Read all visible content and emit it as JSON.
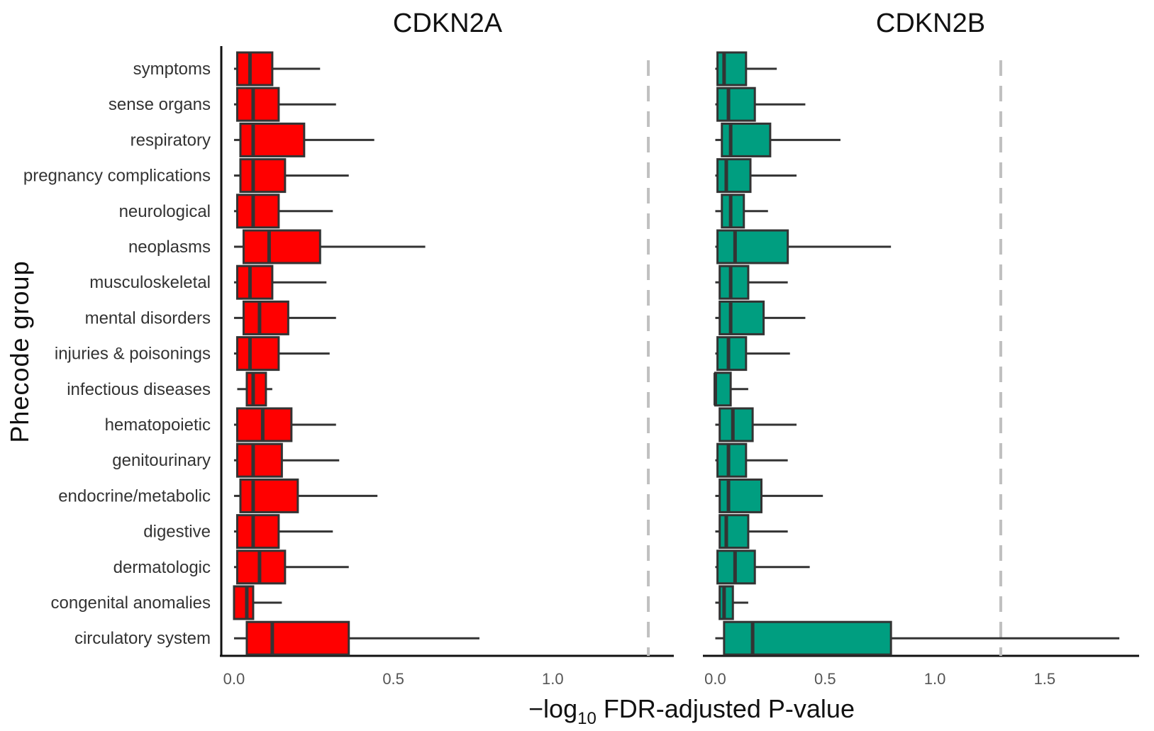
{
  "figure": {
    "y_axis_title": "Phecode group",
    "x_axis_title_prefix": "−log",
    "x_axis_title_subscript": "10",
    "x_axis_title_suffix": " FDR-adjusted P-value"
  },
  "chart_data": [
    {
      "type": "boxplot",
      "title": "CDKN2A",
      "xlabel": "−log10 FDR-adjusted P-value",
      "ylabel": "Phecode group",
      "xlim": [
        -0.04,
        1.38
      ],
      "xticks": [
        0.0,
        0.5,
        1.0
      ],
      "xtick_labels": [
        "0.0",
        "0.5",
        "1.0"
      ],
      "reference_line": 1.3,
      "grid": false,
      "color": "#ff0000",
      "categories": [
        "symptoms",
        "sense organs",
        "respiratory",
        "pregnancy complications",
        "neurological",
        "neoplasms",
        "musculoskeletal",
        "mental disorders",
        "injuries & poisonings",
        "infectious diseases",
        "hematopoietic",
        "genitourinary",
        "endocrine/metabolic",
        "digestive",
        "dermatologic",
        "congenital anomalies",
        "circulatory system"
      ],
      "boxes": [
        {
          "category": "symptoms",
          "min": 0.0,
          "q1": 0.01,
          "median": 0.05,
          "q3": 0.12,
          "max": 0.27
        },
        {
          "category": "sense organs",
          "min": 0.0,
          "q1": 0.01,
          "median": 0.06,
          "q3": 0.14,
          "max": 0.32
        },
        {
          "category": "respiratory",
          "min": 0.0,
          "q1": 0.02,
          "median": 0.06,
          "q3": 0.22,
          "max": 0.44
        },
        {
          "category": "pregnancy complications",
          "min": 0.0,
          "q1": 0.02,
          "median": 0.06,
          "q3": 0.16,
          "max": 0.36
        },
        {
          "category": "neurological",
          "min": 0.0,
          "q1": 0.01,
          "median": 0.06,
          "q3": 0.14,
          "max": 0.31
        },
        {
          "category": "neoplasms",
          "min": 0.0,
          "q1": 0.03,
          "median": 0.11,
          "q3": 0.27,
          "max": 0.6
        },
        {
          "category": "musculoskeletal",
          "min": 0.0,
          "q1": 0.01,
          "median": 0.05,
          "q3": 0.12,
          "max": 0.29
        },
        {
          "category": "mental disorders",
          "min": 0.0,
          "q1": 0.03,
          "median": 0.08,
          "q3": 0.17,
          "max": 0.32
        },
        {
          "category": "injuries & poisonings",
          "min": 0.0,
          "q1": 0.01,
          "median": 0.05,
          "q3": 0.14,
          "max": 0.3
        },
        {
          "category": "infectious diseases",
          "min": 0.01,
          "q1": 0.04,
          "median": 0.06,
          "q3": 0.1,
          "max": 0.12
        },
        {
          "category": "hematopoietic",
          "min": 0.0,
          "q1": 0.01,
          "median": 0.09,
          "q3": 0.18,
          "max": 0.32
        },
        {
          "category": "genitourinary",
          "min": 0.0,
          "q1": 0.01,
          "median": 0.06,
          "q3": 0.15,
          "max": 0.33
        },
        {
          "category": "endocrine/metabolic",
          "min": 0.0,
          "q1": 0.02,
          "median": 0.06,
          "q3": 0.2,
          "max": 0.45
        },
        {
          "category": "digestive",
          "min": 0.0,
          "q1": 0.01,
          "median": 0.06,
          "q3": 0.14,
          "max": 0.31
        },
        {
          "category": "dermatologic",
          "min": 0.0,
          "q1": 0.01,
          "median": 0.08,
          "q3": 0.16,
          "max": 0.36
        },
        {
          "category": "congenital anomalies",
          "min": 0.0,
          "q1": 0.0,
          "median": 0.04,
          "q3": 0.06,
          "max": 0.15
        },
        {
          "category": "circulatory system",
          "min": 0.0,
          "q1": 0.04,
          "median": 0.12,
          "q3": 0.36,
          "max": 0.77
        }
      ]
    },
    {
      "type": "boxplot",
      "title": "CDKN2B",
      "xlabel": "−log10 FDR-adjusted P-value",
      "ylabel": "Phecode group",
      "xlim": [
        -0.05,
        1.93
      ],
      "xticks": [
        0.0,
        0.5,
        1.0,
        1.5
      ],
      "xtick_labels": [
        "0.0",
        "0.5",
        "1.0",
        "1.5"
      ],
      "reference_line": 1.3,
      "grid": false,
      "color": "#009e80",
      "categories": [
        "symptoms",
        "sense organs",
        "respiratory",
        "pregnancy complications",
        "neurological",
        "neoplasms",
        "musculoskeletal",
        "mental disorders",
        "injuries & poisonings",
        "infectious diseases",
        "hematopoietic",
        "genitourinary",
        "endocrine/metabolic",
        "digestive",
        "dermatologic",
        "congenital anomalies",
        "circulatory system"
      ],
      "boxes": [
        {
          "category": "symptoms",
          "min": 0.0,
          "q1": 0.01,
          "median": 0.04,
          "q3": 0.14,
          "max": 0.28
        },
        {
          "category": "sense organs",
          "min": 0.0,
          "q1": 0.01,
          "median": 0.06,
          "q3": 0.18,
          "max": 0.41
        },
        {
          "category": "respiratory",
          "min": 0.0,
          "q1": 0.03,
          "median": 0.07,
          "q3": 0.25,
          "max": 0.57
        },
        {
          "category": "pregnancy complications",
          "min": 0.0,
          "q1": 0.01,
          "median": 0.05,
          "q3": 0.16,
          "max": 0.37
        },
        {
          "category": "neurological",
          "min": 0.0,
          "q1": 0.03,
          "median": 0.07,
          "q3": 0.13,
          "max": 0.24
        },
        {
          "category": "neoplasms",
          "min": 0.0,
          "q1": 0.01,
          "median": 0.09,
          "q3": 0.33,
          "max": 0.8
        },
        {
          "category": "musculoskeletal",
          "min": 0.0,
          "q1": 0.02,
          "median": 0.07,
          "q3": 0.15,
          "max": 0.33
        },
        {
          "category": "mental disorders",
          "min": 0.0,
          "q1": 0.02,
          "median": 0.07,
          "q3": 0.22,
          "max": 0.41
        },
        {
          "category": "injuries & poisonings",
          "min": 0.0,
          "q1": 0.01,
          "median": 0.06,
          "q3": 0.14,
          "max": 0.34
        },
        {
          "category": "infectious diseases",
          "min": 0.0,
          "q1": 0.0,
          "median": 0.0,
          "q3": 0.07,
          "max": 0.15
        },
        {
          "category": "hematopoietic",
          "min": 0.0,
          "q1": 0.02,
          "median": 0.08,
          "q3": 0.17,
          "max": 0.37
        },
        {
          "category": "genitourinary",
          "min": 0.0,
          "q1": 0.01,
          "median": 0.06,
          "q3": 0.14,
          "max": 0.33
        },
        {
          "category": "endocrine/metabolic",
          "min": 0.0,
          "q1": 0.02,
          "median": 0.06,
          "q3": 0.21,
          "max": 0.49
        },
        {
          "category": "digestive",
          "min": 0.0,
          "q1": 0.02,
          "median": 0.05,
          "q3": 0.15,
          "max": 0.33
        },
        {
          "category": "dermatologic",
          "min": 0.0,
          "q1": 0.01,
          "median": 0.09,
          "q3": 0.18,
          "max": 0.43
        },
        {
          "category": "congenital anomalies",
          "min": 0.0,
          "q1": 0.02,
          "median": 0.04,
          "q3": 0.08,
          "max": 0.15
        },
        {
          "category": "circulatory system",
          "min": 0.0,
          "q1": 0.04,
          "median": 0.17,
          "q3": 0.8,
          "max": 1.84
        }
      ]
    }
  ]
}
